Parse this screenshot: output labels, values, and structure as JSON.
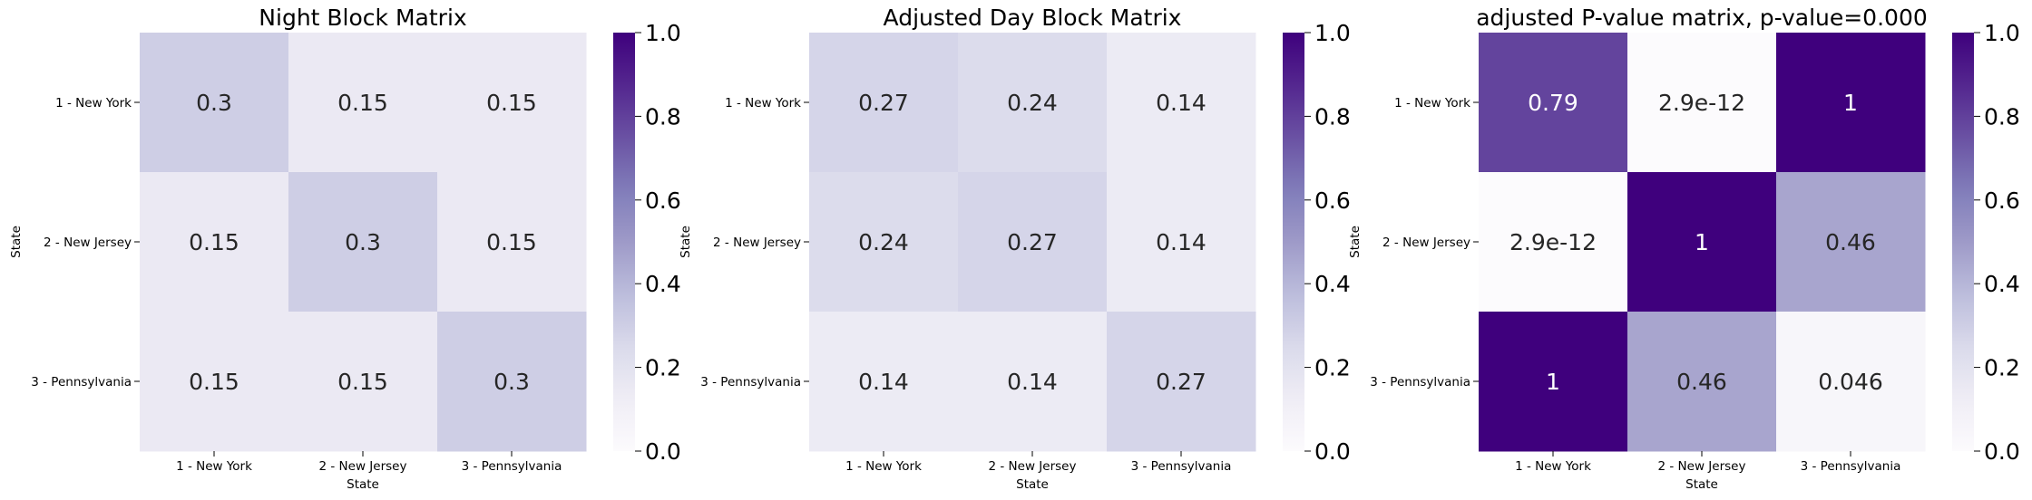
{
  "chart_data": [
    {
      "type": "heatmap",
      "title": "Night Block Matrix",
      "xlabel": "State",
      "ylabel": "State",
      "x_categories": [
        "1 - New York",
        "2 - New Jersey",
        "3 - Pennsylvania"
      ],
      "y_categories": [
        "1 - New York",
        "2 - New Jersey",
        "3 - Pennsylvania"
      ],
      "values": [
        [
          0.3,
          0.15,
          0.15
        ],
        [
          0.15,
          0.3,
          0.15
        ],
        [
          0.15,
          0.15,
          0.3
        ]
      ],
      "labels": [
        [
          "0.3",
          "0.15",
          "0.15"
        ],
        [
          "0.15",
          "0.3",
          "0.15"
        ],
        [
          "0.15",
          "0.15",
          "0.3"
        ]
      ],
      "vmin": 0,
      "vmax": 1,
      "colorbar_ticks": [
        "0.0",
        "0.2",
        "0.4",
        "0.6",
        "0.8",
        "1.0"
      ],
      "colormap": "Purples"
    },
    {
      "type": "heatmap",
      "title": "Adjusted Day Block Matrix",
      "xlabel": "State",
      "ylabel": "State",
      "x_categories": [
        "1 - New York",
        "2 - New Jersey",
        "3 - Pennsylvania"
      ],
      "y_categories": [
        "1 - New York",
        "2 - New Jersey",
        "3 - Pennsylvania"
      ],
      "values": [
        [
          0.27,
          0.24,
          0.14
        ],
        [
          0.24,
          0.27,
          0.14
        ],
        [
          0.14,
          0.14,
          0.27
        ]
      ],
      "labels": [
        [
          "0.27",
          "0.24",
          "0.14"
        ],
        [
          "0.24",
          "0.27",
          "0.14"
        ],
        [
          "0.14",
          "0.14",
          "0.27"
        ]
      ],
      "vmin": 0,
      "vmax": 1,
      "colorbar_ticks": [
        "0.0",
        "0.2",
        "0.4",
        "0.6",
        "0.8",
        "1.0"
      ],
      "colormap": "Purples"
    },
    {
      "type": "heatmap",
      "title": "adjusted P-value matrix, p-value=0.000",
      "xlabel": "State",
      "ylabel": "State",
      "x_categories": [
        "1 - New York",
        "2 - New Jersey",
        "3 - Pennsylvania"
      ],
      "y_categories": [
        "1 - New York",
        "2 - New Jersey",
        "3 - Pennsylvania"
      ],
      "values": [
        [
          0.79,
          2.9e-12,
          1
        ],
        [
          2.9e-12,
          1,
          0.46
        ],
        [
          1,
          0.46,
          0.046
        ]
      ],
      "labels": [
        [
          "0.79",
          "2.9e-12",
          "1"
        ],
        [
          "2.9e-12",
          "1",
          "0.46"
        ],
        [
          "1",
          "0.46",
          "0.046"
        ]
      ],
      "vmin": 0,
      "vmax": 1,
      "colorbar_ticks": [
        "0.0",
        "0.2",
        "0.4",
        "0.6",
        "0.8",
        "1.0"
      ],
      "colormap": "Purples"
    }
  ]
}
